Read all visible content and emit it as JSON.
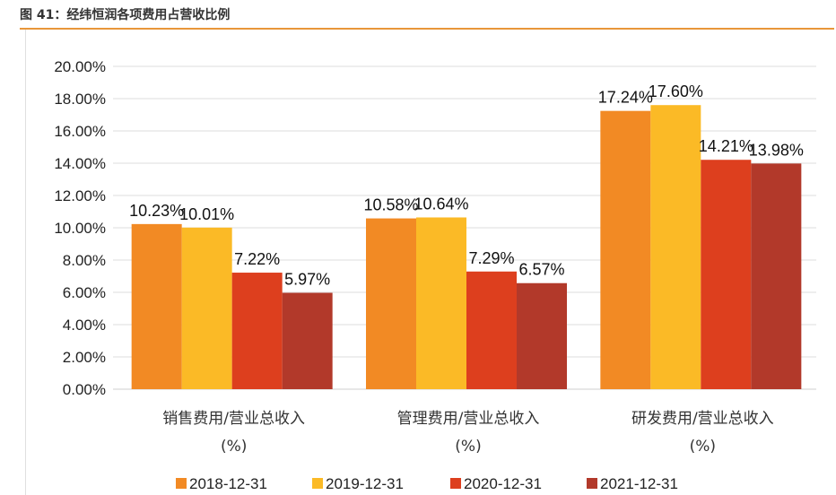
{
  "figure": {
    "title": "图 41：经纬恒润各项费用占营收比例"
  },
  "chart_data": {
    "type": "bar",
    "title": "",
    "categories": [
      "销售费用/营业总收入(%)",
      "管理费用/营业总收入(%)",
      "研发费用/营业总收入(%)"
    ],
    "category_lines": [
      [
        "销售费用/营业总收入",
        "(%)"
      ],
      [
        "管理费用/营业总收入",
        "(%)"
      ],
      [
        "研发费用/营业总收入",
        "(%)"
      ]
    ],
    "series": [
      {
        "name": "2018-12-31",
        "color": "#F28A24",
        "values": [
          10.23,
          10.58,
          17.24
        ],
        "labels": [
          "10.23%",
          "10.58%",
          "17.24%"
        ]
      },
      {
        "name": "2019-12-31",
        "color": "#FBBA26",
        "values": [
          10.01,
          10.64,
          17.6
        ],
        "labels": [
          "10.01%",
          "10.64%",
          "17.60%"
        ]
      },
      {
        "name": "2020-12-31",
        "color": "#DD3F1E",
        "values": [
          7.22,
          7.29,
          14.21
        ],
        "labels": [
          "7.22%",
          "7.29%",
          "14.21%"
        ]
      },
      {
        "name": "2021-12-31",
        "color": "#B2392A",
        "values": [
          5.97,
          6.57,
          13.98
        ],
        "labels": [
          "5.97%",
          "6.57%",
          "13.98%"
        ]
      }
    ],
    "ylim": [
      0,
      20
    ],
    "yticks": [
      "0.00%",
      "2.00%",
      "4.00%",
      "6.00%",
      "8.00%",
      "10.00%",
      "12.00%",
      "14.00%",
      "16.00%",
      "18.00%",
      "20.00%"
    ],
    "xlabel": "",
    "ylabel": "",
    "grid": true,
    "legend": "bottom"
  }
}
